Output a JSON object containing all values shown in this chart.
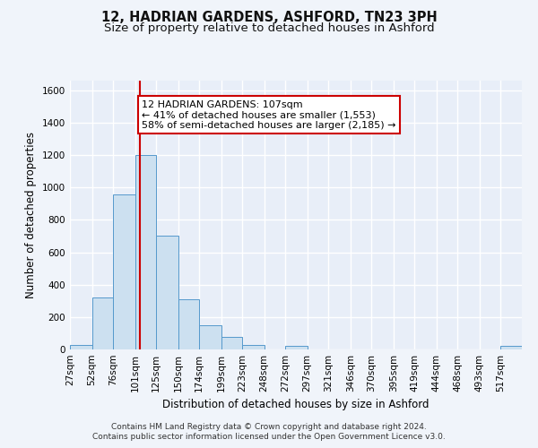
{
  "title_line1": "12, HADRIAN GARDENS, ASHFORD, TN23 3PH",
  "title_line2": "Size of property relative to detached houses in Ashford",
  "xlabel": "Distribution of detached houses by size in Ashford",
  "ylabel": "Number of detached properties",
  "footnote": "Contains HM Land Registry data © Crown copyright and database right 2024.\nContains public sector information licensed under the Open Government Licence v3.0.",
  "bin_labels": [
    "27sqm",
    "52sqm",
    "76sqm",
    "101sqm",
    "125sqm",
    "150sqm",
    "174sqm",
    "199sqm",
    "223sqm",
    "248sqm",
    "272sqm",
    "297sqm",
    "321sqm",
    "346sqm",
    "370sqm",
    "395sqm",
    "419sqm",
    "444sqm",
    "468sqm",
    "493sqm",
    "517sqm"
  ],
  "bin_edges": [
    27,
    52,
    76,
    101,
    125,
    150,
    174,
    199,
    223,
    248,
    272,
    297,
    321,
    346,
    370,
    395,
    419,
    444,
    468,
    493,
    517,
    541
  ],
  "bar_heights": [
    30,
    320,
    960,
    1200,
    700,
    310,
    150,
    75,
    25,
    0,
    20,
    0,
    0,
    0,
    0,
    0,
    0,
    0,
    0,
    0,
    20
  ],
  "bar_color": "#cce0f0",
  "bar_edge_color": "#5599cc",
  "ylim": [
    0,
    1660
  ],
  "yticks": [
    0,
    200,
    400,
    600,
    800,
    1000,
    1200,
    1400,
    1600
  ],
  "property_size": 107,
  "property_line_color": "#cc0000",
  "annotation_text": "12 HADRIAN GARDENS: 107sqm\n← 41% of detached houses are smaller (1,553)\n58% of semi-detached houses are larger (2,185) →",
  "annotation_box_color": "#ffffff",
  "annotation_box_edge": "#cc0000",
  "bg_color": "#f0f4fa",
  "plot_bg_color": "#e8eef8",
  "grid_color": "#ffffff",
  "title_fontsize": 10.5,
  "subtitle_fontsize": 9.5,
  "axis_label_fontsize": 8.5,
  "tick_fontsize": 7.5,
  "annotation_fontsize": 8,
  "footnote_fontsize": 6.5
}
